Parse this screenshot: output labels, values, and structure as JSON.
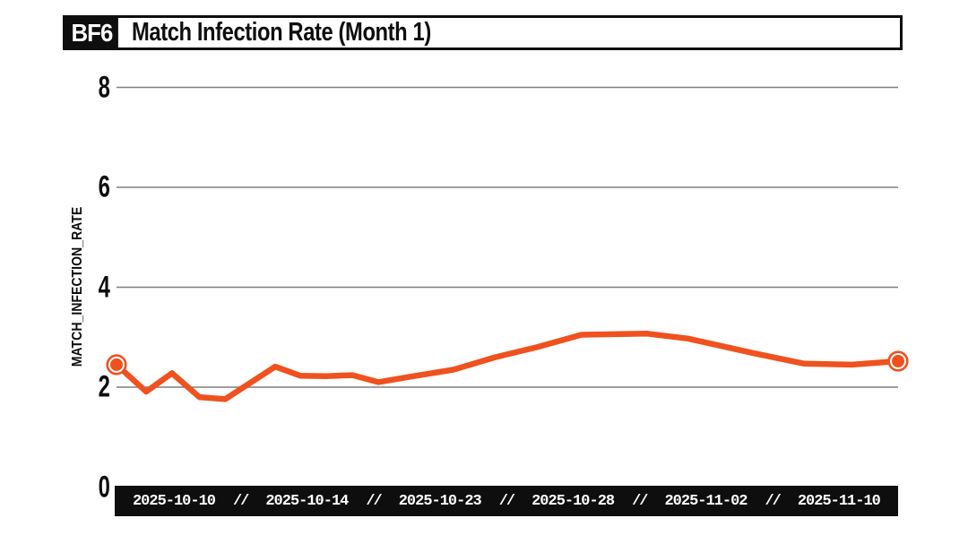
{
  "header": {
    "badge": "BF6",
    "title": "Match Infection Rate (Month 1)"
  },
  "colors": {
    "background": "#ffffff",
    "black": "#0e0e0e",
    "gridline": "#7f7f7f",
    "accent_orange": "#f0511e",
    "bar_text": "#ffffff"
  },
  "chart_data": {
    "type": "line",
    "title": "Match Infection Rate (Month 1)",
    "xlabel": "",
    "ylabel": "MATCH_INFECTION_RATE",
    "ylim": [
      0,
      8
    ],
    "y_ticks": [
      0,
      2,
      4,
      6,
      8
    ],
    "grid": "horizontal gridlines at y = 2, 4, 6, 8 only",
    "legend": "none",
    "x_tick_labels": [
      "2025-10-10",
      "2025-10-14",
      "2025-10-23",
      "2025-10-28",
      "2025-11-02",
      "2025-11-10"
    ],
    "x_tick_separator": "//",
    "markers": "ring markers on first and last points",
    "series": [
      {
        "name": "match_infection_rate",
        "color": "#f0511e",
        "points": [
          {
            "x": 0.0,
            "y": 2.45
          },
          {
            "x": 0.038,
            "y": 1.91
          },
          {
            "x": 0.071,
            "y": 2.28
          },
          {
            "x": 0.106,
            "y": 1.8
          },
          {
            "x": 0.139,
            "y": 1.76
          },
          {
            "x": 0.203,
            "y": 2.41
          },
          {
            "x": 0.235,
            "y": 2.23
          },
          {
            "x": 0.268,
            "y": 2.22
          },
          {
            "x": 0.302,
            "y": 2.24
          },
          {
            "x": 0.335,
            "y": 2.1
          },
          {
            "x": 0.376,
            "y": 2.21
          },
          {
            "x": 0.431,
            "y": 2.35
          },
          {
            "x": 0.485,
            "y": 2.6
          },
          {
            "x": 0.538,
            "y": 2.8
          },
          {
            "x": 0.595,
            "y": 3.05
          },
          {
            "x": 0.679,
            "y": 3.07
          },
          {
            "x": 0.732,
            "y": 2.97
          },
          {
            "x": 0.815,
            "y": 2.68
          },
          {
            "x": 0.88,
            "y": 2.47
          },
          {
            "x": 0.941,
            "y": 2.45
          },
          {
            "x": 1.0,
            "y": 2.52
          }
        ]
      }
    ]
  }
}
